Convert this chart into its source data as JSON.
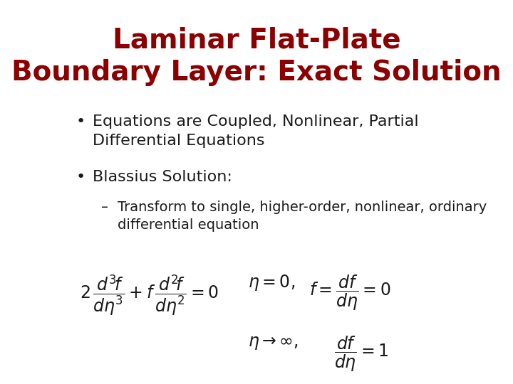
{
  "title_line1": "Laminar Flat-Plate",
  "title_line2": "Boundary Layer: Exact Solution",
  "title_color": "#8B0000",
  "title_fontsize": 28,
  "title_fontweight": "bold",
  "bullet1": "Equations are Coupled, Nonlinear, Partial\nDifferential Equations",
  "bullet2": "Blassius Solution:",
  "sub_bullet": "Transform to single, higher-order, nonlinear, ordinary\ndifferential equation",
  "text_color": "#1a1a1a",
  "bullet_fontsize": 16,
  "sub_bullet_fontsize": 14,
  "background_color": "#ffffff",
  "eq_main": "2\\,\\dfrac{d^3\\!f}{d\\eta^3} + f\\,\\dfrac{d^2\\!f}{d\\eta^2} = 0",
  "eq_bc1a": "\\eta = 0,",
  "eq_bc1b": "f = \\dfrac{df}{d\\eta} = 0",
  "eq_bc2a": "\\eta \\rightarrow \\infty,",
  "eq_bc2b": "\\dfrac{df}{d\\eta} = 1",
  "eq_fontsize": 17
}
